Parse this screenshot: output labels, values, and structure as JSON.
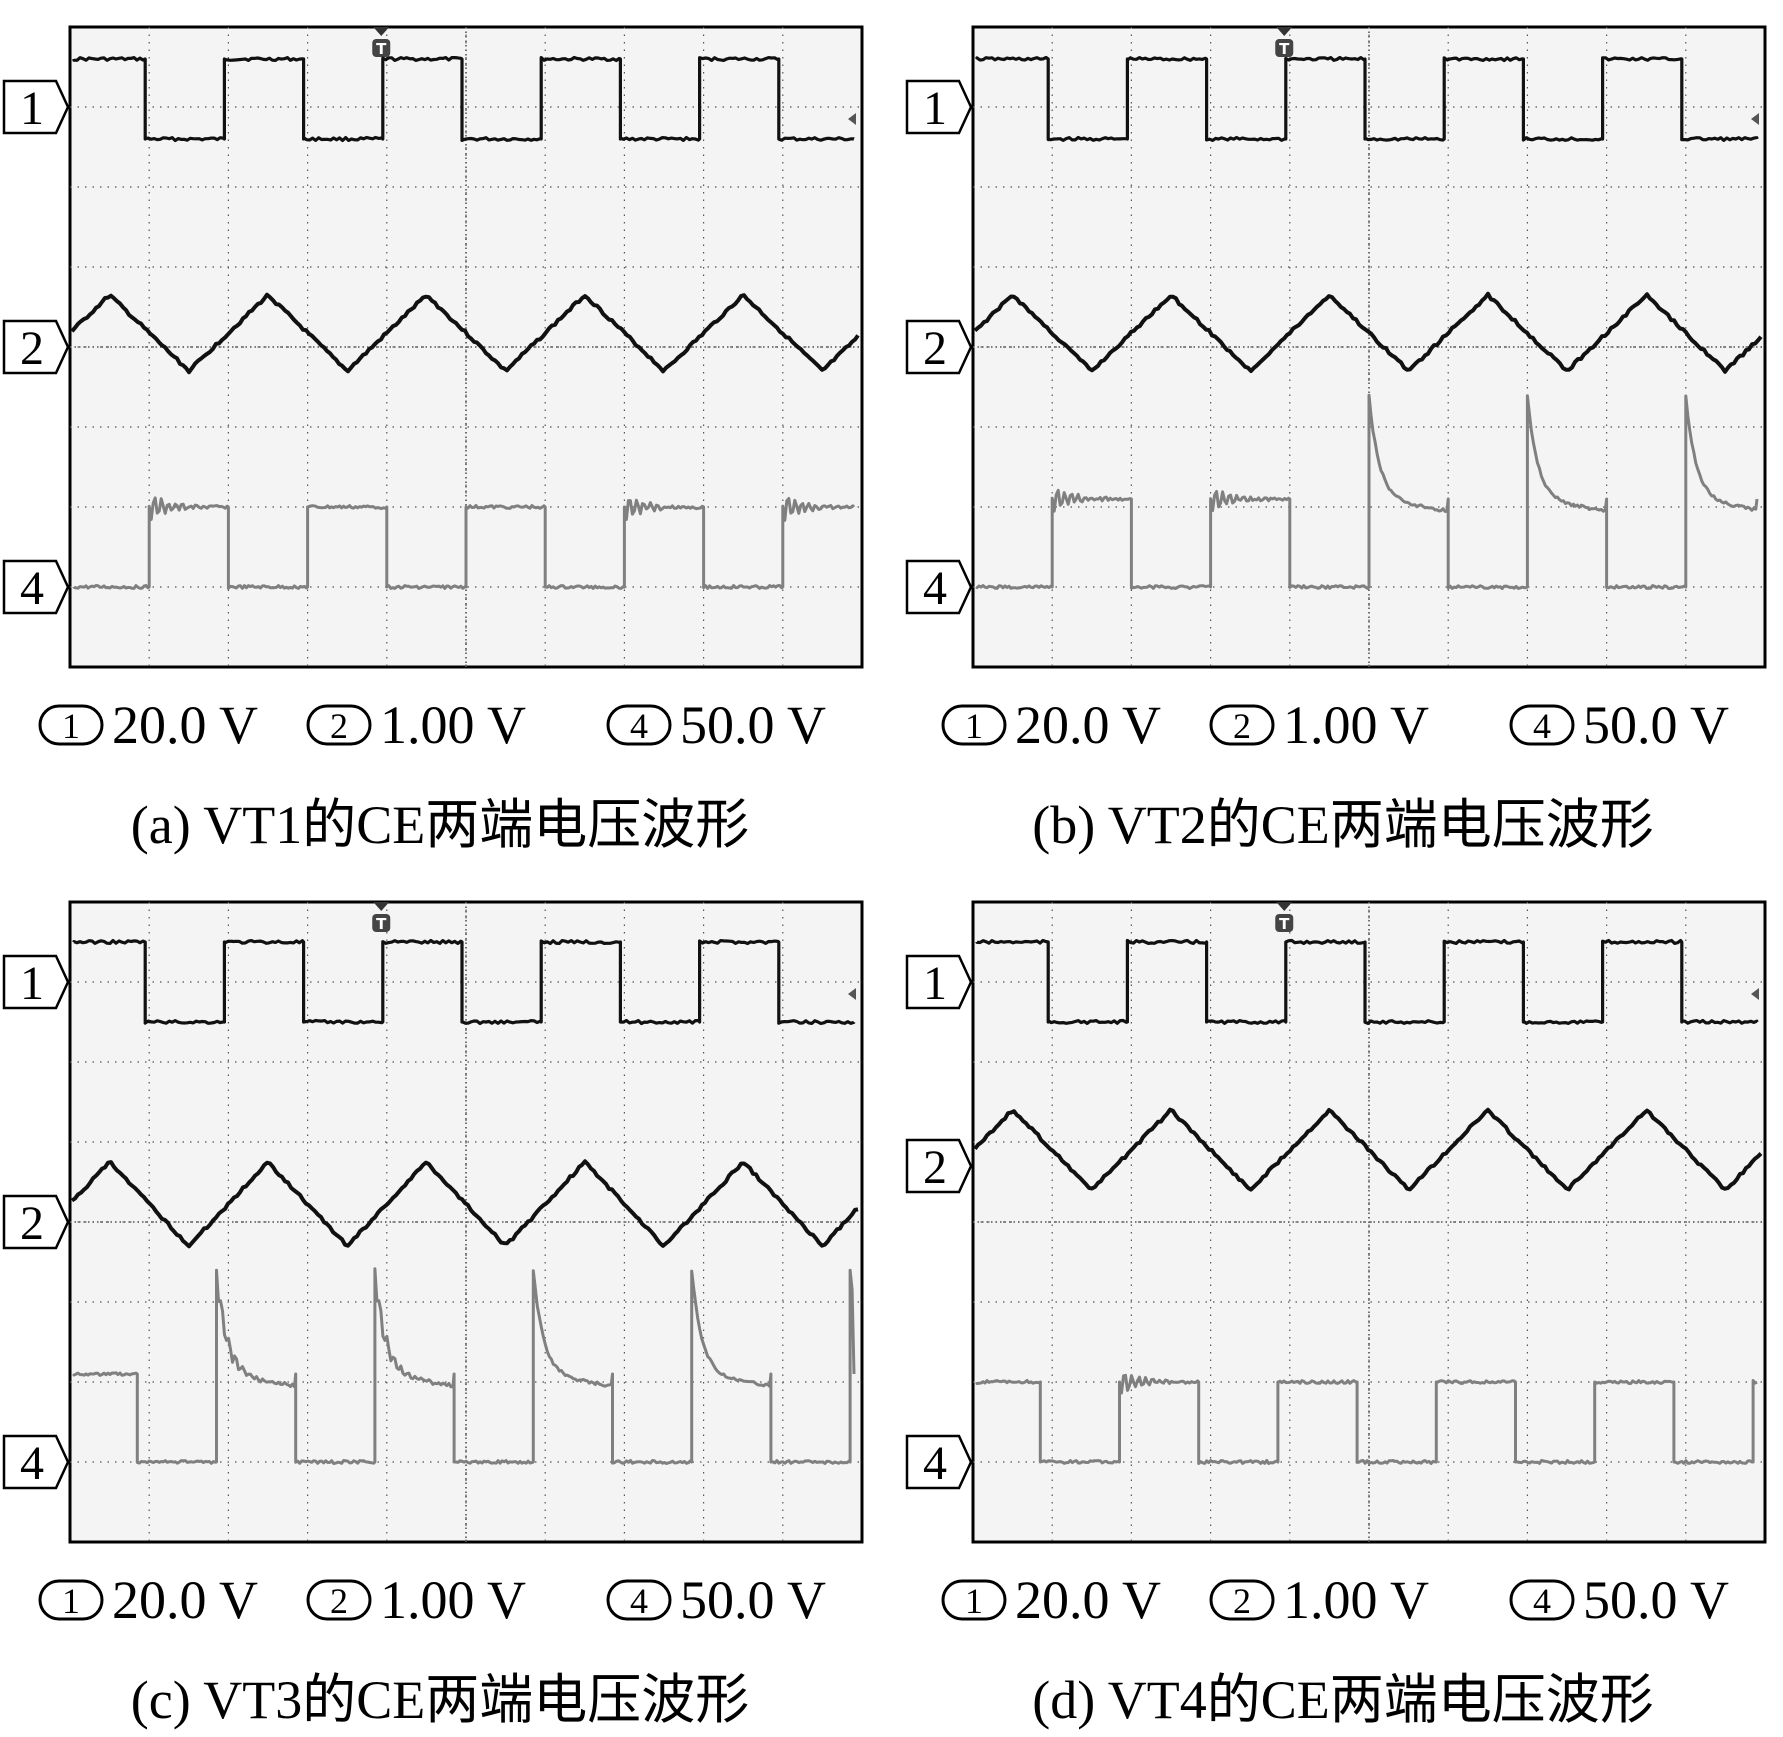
{
  "chart_data": [
    {
      "type": "line",
      "subtype": "oscilloscope-waveforms",
      "panel": "a",
      "title": "(a)  VT1的CE两端电压波形",
      "grid": true,
      "time_divisions": 10,
      "vertical_divisions": 8,
      "trigger_marker": "T",
      "channels": [
        {
          "id": "1",
          "scale": "20.0 V",
          "waveform": "square",
          "marker_level_div": 3.0,
          "high_div": 3.6,
          "low_div": 2.6,
          "cycles": 5,
          "start": "high"
        },
        {
          "id": "2",
          "scale": "1.00 V",
          "waveform": "triangle",
          "marker_level_div": 0.0,
          "peak_div": 0.65,
          "trough_div": -0.3,
          "cycles": 5
        },
        {
          "id": "4",
          "scale": "50.0 V",
          "waveform": "square-with-ringing",
          "marker_level_div": -3.0,
          "high_div": -2.0,
          "low_div": -3.0,
          "cycles": 5,
          "start": "low",
          "spikes": [
            false,
            false,
            false,
            false,
            false
          ],
          "ringing": [
            true,
            false,
            false,
            true,
            true
          ]
        }
      ]
    },
    {
      "type": "line",
      "subtype": "oscilloscope-waveforms",
      "panel": "b",
      "title": "(b)  VT2的CE两端电压波形",
      "grid": true,
      "time_divisions": 10,
      "vertical_divisions": 8,
      "trigger_marker": "T",
      "channels": [
        {
          "id": "1",
          "scale": "20.0 V",
          "waveform": "square",
          "marker_level_div": 3.0,
          "high_div": 3.6,
          "low_div": 2.6,
          "cycles": 5,
          "start": "high"
        },
        {
          "id": "2",
          "scale": "1.00 V",
          "waveform": "triangle",
          "marker_level_div": 0.0,
          "peak_div": 0.65,
          "trough_div": -0.3,
          "cycles": 5
        },
        {
          "id": "4",
          "scale": "50.0 V",
          "waveform": "square-with-spikes",
          "marker_level_div": -3.0,
          "high_div": -1.9,
          "low_div": -3.0,
          "cycles": 5,
          "start": "low",
          "spikes": [
            false,
            false,
            true,
            true,
            true
          ],
          "ringing": [
            true,
            true,
            false,
            false,
            false
          ]
        }
      ]
    },
    {
      "type": "line",
      "subtype": "oscilloscope-waveforms",
      "panel": "c",
      "title": "(c)  VT3的CE两端电压波形",
      "grid": true,
      "time_divisions": 10,
      "vertical_divisions": 8,
      "trigger_marker": "T",
      "channels": [
        {
          "id": "1",
          "scale": "20.0 V",
          "waveform": "square",
          "marker_level_div": 3.0,
          "high_div": 3.5,
          "low_div": 2.5,
          "cycles": 5,
          "start": "high"
        },
        {
          "id": "2",
          "scale": "1.00 V",
          "waveform": "triangle",
          "marker_level_div": 0.0,
          "peak_div": 0.75,
          "trough_div": -0.3,
          "cycles": 5
        },
        {
          "id": "4",
          "scale": "50.0 V",
          "waveform": "square-with-spikes",
          "marker_level_div": -3.0,
          "high_div": -1.9,
          "low_div": -3.0,
          "cycles": 5,
          "start": "high",
          "spikes": [
            false,
            true,
            true,
            true,
            true
          ],
          "ringing": [
            false,
            true,
            true,
            false,
            false
          ]
        }
      ]
    },
    {
      "type": "line",
      "subtype": "oscilloscope-waveforms",
      "panel": "d",
      "title": "(d)  VT4的CE两端电压波形",
      "grid": true,
      "time_divisions": 10,
      "vertical_divisions": 8,
      "trigger_marker": "T",
      "channels": [
        {
          "id": "1",
          "scale": "20.0 V",
          "waveform": "square",
          "marker_level_div": 3.0,
          "high_div": 3.5,
          "low_div": 2.5,
          "cycles": 5,
          "start": "high"
        },
        {
          "id": "2",
          "scale": "1.00 V",
          "waveform": "triangle",
          "marker_level_div": 0.7,
          "peak_div": 1.4,
          "trough_div": 0.4,
          "cycles": 5
        },
        {
          "id": "4",
          "scale": "50.0 V",
          "waveform": "square-with-ringing",
          "marker_level_div": -3.0,
          "high_div": -2.0,
          "low_div": -3.0,
          "cycles": 5,
          "start": "high",
          "spikes": [
            false,
            false,
            false,
            false,
            false
          ],
          "ringing": [
            false,
            true,
            false,
            false,
            false
          ]
        }
      ]
    }
  ],
  "scale_labels": {
    "ch1": "20.0 V",
    "ch2": "1.00 V",
    "ch4": "50.0 V"
  },
  "badge_digits": {
    "ch1": "1",
    "ch2": "2",
    "ch4": "4"
  },
  "captions": {
    "a": "(a)  VT1的CE两端电压波形",
    "b": "(b)  VT2的CE两端电压波形",
    "c": "(c)  VT3的CE两端电压波形",
    "d": "(d)  VT4的CE两端电压波形"
  },
  "colors": {
    "ch1": "#111111",
    "ch2": "#111111",
    "ch4": "#808080",
    "screen": "#f4f4f4",
    "grid": "#555555"
  }
}
